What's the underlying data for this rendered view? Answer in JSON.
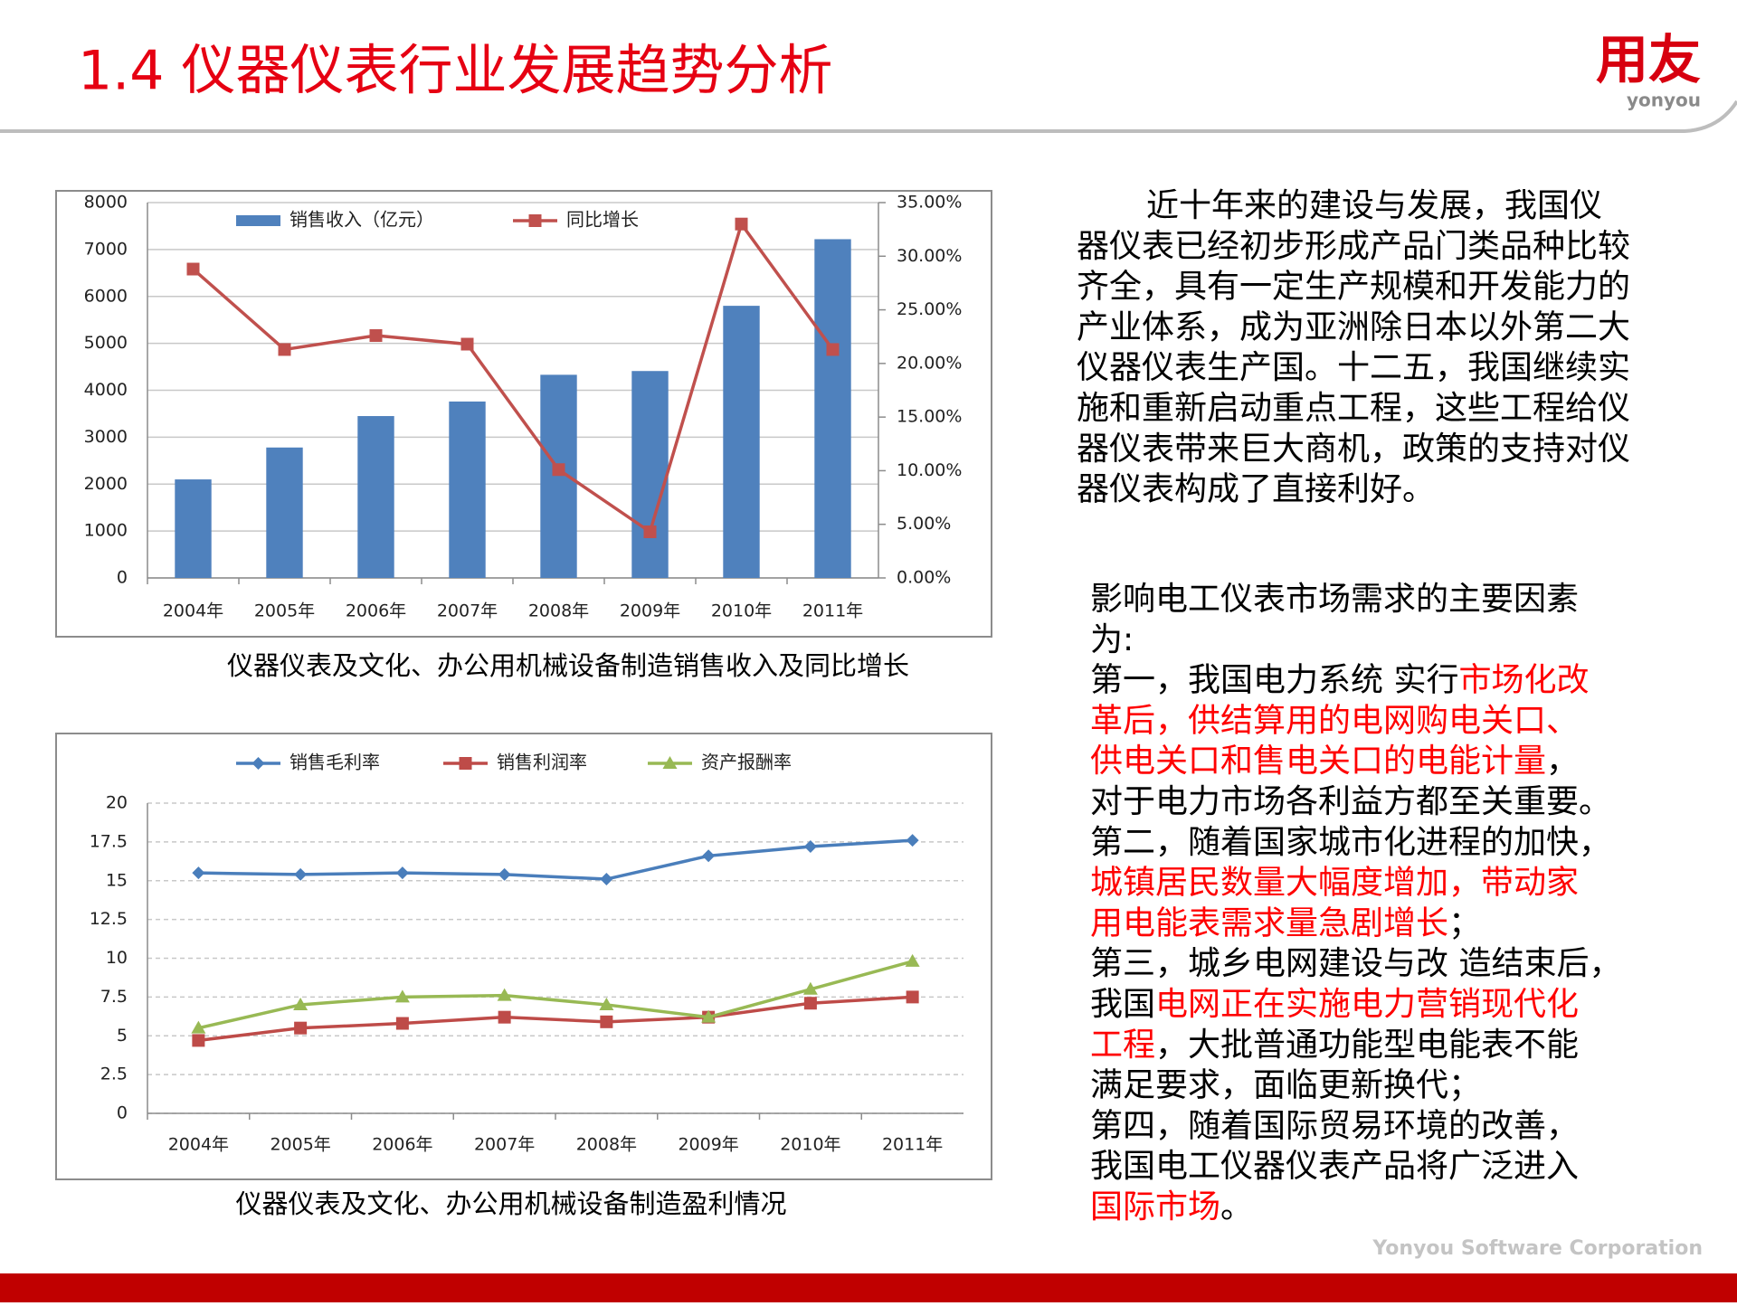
{
  "header": {
    "title": "1.4 仪器仪表行业发展趋势分析",
    "logo": "用友",
    "logo_sub": "yonyou"
  },
  "chart_data": [
    {
      "type": "bar",
      "caption": "仪器仪表及文化、办公用机械设备制造销售收入及同比增长",
      "categories": [
        "2004年",
        "2005年",
        "2006年",
        "2007年",
        "2008年",
        "2009年",
        "2010年",
        "2011年"
      ],
      "series": [
        {
          "name": "销售收入（亿元）",
          "color": "#4f81bd",
          "type": "bar",
          "values": [
            2100,
            2780,
            3450,
            3760,
            4330,
            4410,
            5800,
            7220
          ]
        },
        {
          "name": "同比增长",
          "color": "#c0504d",
          "type": "line",
          "axis": "y2",
          "marker": "square",
          "values": [
            28.8,
            21.3,
            22.6,
            21.8,
            10.1,
            4.3,
            33.0,
            21.3
          ]
        }
      ],
      "ylim": [
        0,
        8000
      ],
      "yticks": [
        0,
        1000,
        2000,
        3000,
        4000,
        5000,
        6000,
        7000,
        8000
      ],
      "y2lim": [
        0,
        35
      ],
      "y2ticks": [
        {
          "value": 0,
          "label": "0.00%"
        },
        {
          "value": 5,
          "label": "5.00%"
        },
        {
          "value": 10,
          "label": "10.00%"
        },
        {
          "value": 15,
          "label": "15.00%"
        },
        {
          "value": 20,
          "label": "20.00%"
        },
        {
          "value": 25,
          "label": "25.00%"
        },
        {
          "value": 30,
          "label": "30.00%"
        },
        {
          "value": 35,
          "label": "35.00%"
        }
      ],
      "grid": true,
      "legend": "top"
    },
    {
      "type": "line",
      "caption": "仪器仪表及文化、办公用机械设备制造盈利情况",
      "categories": [
        "2004年",
        "2005年",
        "2006年",
        "2007年",
        "2008年",
        "2009年",
        "2010年",
        "2011年"
      ],
      "series": [
        {
          "name": "销售毛利率",
          "color": "#4a7ebb",
          "marker": "diamond",
          "values": [
            15.5,
            15.4,
            15.5,
            15.4,
            15.1,
            16.6,
            17.2,
            17.6
          ]
        },
        {
          "name": "销售利润率",
          "color": "#be4b48",
          "marker": "square",
          "values": [
            4.7,
            5.5,
            5.8,
            6.2,
            5.9,
            6.2,
            7.1,
            7.5
          ]
        },
        {
          "name": "资产报酬率",
          "color": "#98b954",
          "marker": "triangle",
          "values": [
            5.5,
            7.0,
            7.5,
            7.6,
            7.0,
            6.2,
            8.0,
            9.8
          ]
        }
      ],
      "ylim": [
        0,
        20
      ],
      "yticks": [
        0,
        2.5,
        5,
        7.5,
        10,
        12.5,
        15,
        17.5,
        20
      ],
      "grid": true,
      "legend": "top"
    }
  ],
  "intro": {
    "lines": [
      "近十年来的建设与发展，我国仪",
      "器仪表已经初步形成产品门类品种比较",
      "齐全，具有一定生产规模和开发能力的",
      "产业体系，成为亚洲除日本以外第二大",
      "仪器仪表生产国。十二五，我国继续实",
      "施和重新启动重点工程，这些工程给仪",
      "器仪表带来巨大商机，政策的支持对仪",
      "器仪表构成了直接利好。"
    ]
  },
  "factors": {
    "lines": [
      [
        {
          "text": "影响电工仪表市场需求的主要因素"
        }
      ],
      [
        {
          "text": "为:"
        }
      ],
      [
        {
          "text": "第一，我国电力系统 实行"
        },
        {
          "text": "市场化改",
          "color": "#ff0000"
        }
      ],
      [
        {
          "text": "革后，供结算用的电网购电关口、",
          "color": "#ff0000"
        }
      ],
      [
        {
          "text": "供电关口和售电关口的电能计量",
          "color": "#ff0000"
        },
        {
          "text": "，"
        }
      ],
      [
        {
          "text": "对于电力市场各利益方都至关重要。"
        }
      ],
      [
        {
          "text": "第二，随着国家城市化进程的加快，"
        }
      ],
      [
        {
          "text": "城镇居民数量大幅度增加，带动家",
          "color": "#ff0000"
        }
      ],
      [
        {
          "text": "用电能表需求量急剧增长",
          "color": "#ff0000"
        },
        {
          "text": "；"
        }
      ],
      [
        {
          "text": "第三，城乡电网建设与改 造结束后，"
        }
      ],
      [
        {
          "text": "我国"
        },
        {
          "text": "电网正在实施电力营销现代化",
          "color": "#ff0000"
        }
      ],
      [
        {
          "text": "工程",
          "color": "#ff0000"
        },
        {
          "text": "，大批普通功能型电能表不能"
        }
      ],
      [
        {
          "text": "满足要求，面临更新换代；"
        }
      ],
      [
        {
          "text": "第四，随着国际贸易环境的改善，"
        }
      ],
      [
        {
          "text": "我国电工仪器仪表产品将广泛进入"
        }
      ],
      [
        {
          "text": "国际市场",
          "color": "#ff0000"
        },
        {
          "text": "。"
        }
      ]
    ]
  },
  "footer": "Yonyou Software Corporation"
}
